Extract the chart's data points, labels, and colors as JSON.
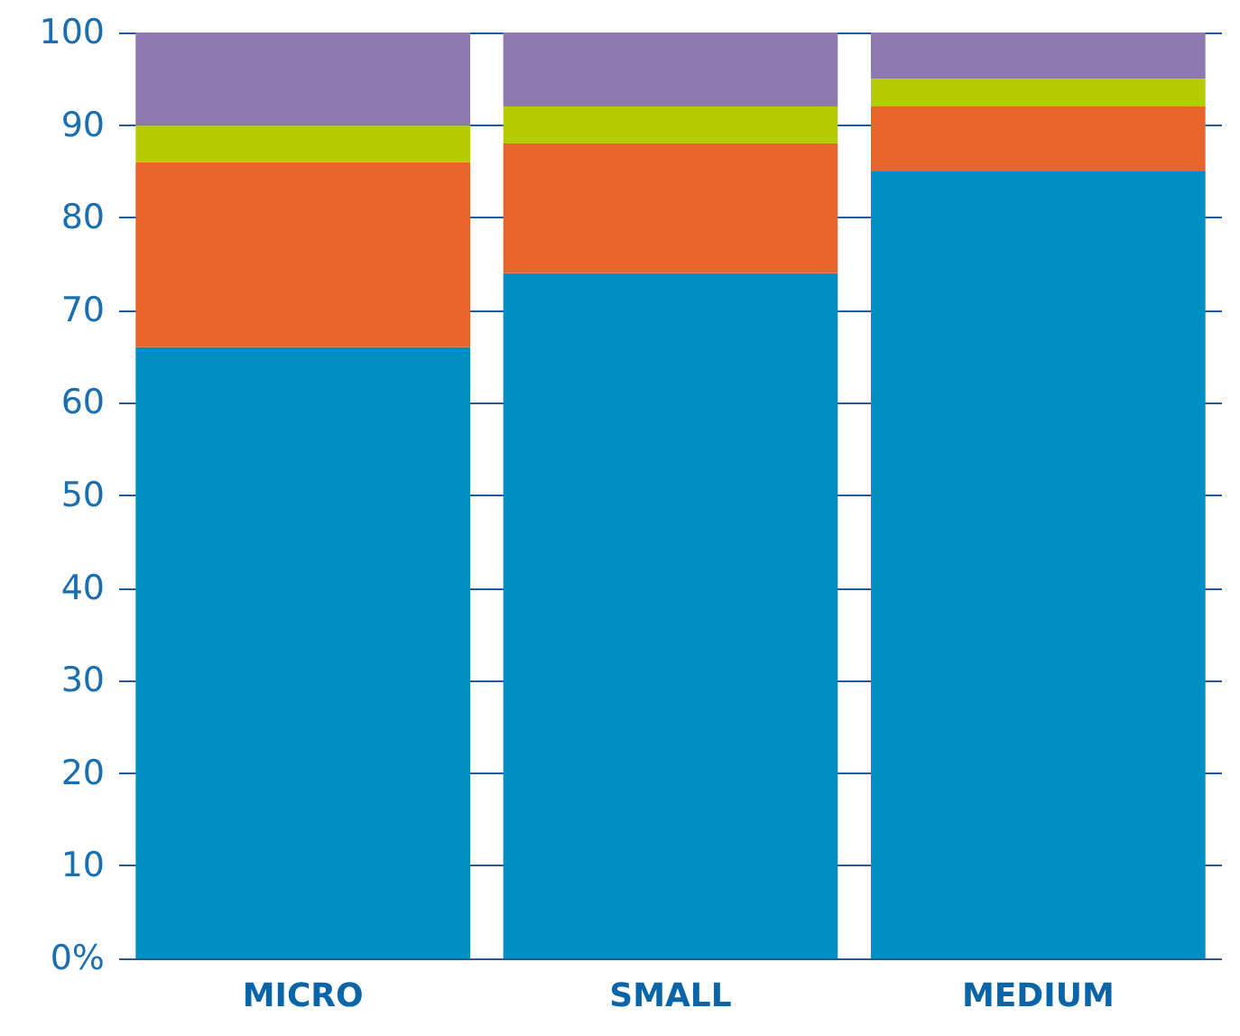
{
  "chart_data": {
    "type": "bar",
    "stacked": true,
    "categories": [
      "MICRO",
      "SMALL",
      "MEDIUM"
    ],
    "series": [
      {
        "color": "#008fc5",
        "values": [
          66,
          74,
          85
        ]
      },
      {
        "color": "#e8642c",
        "values": [
          20,
          14,
          7
        ]
      },
      {
        "color": "#b5cc00",
        "values": [
          4,
          4,
          3
        ]
      },
      {
        "color": "#8e78b0",
        "values": [
          10,
          8,
          5
        ]
      }
    ],
    "ylim": [
      0,
      100
    ],
    "yticks": [
      {
        "value": 0,
        "label": "0%"
      },
      10,
      20,
      30,
      40,
      50,
      60,
      70,
      80,
      90,
      100
    ],
    "grid": "y"
  }
}
